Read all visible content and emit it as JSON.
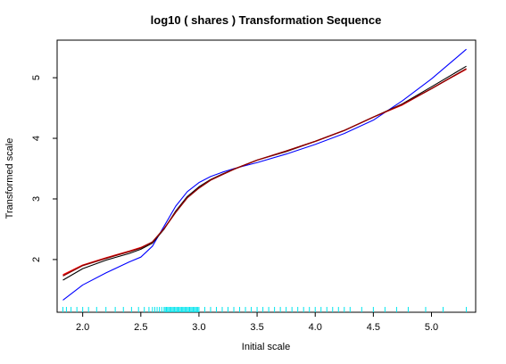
{
  "chart_data": {
    "type": "line",
    "title": "log10 ( shares )  Transformation  Sequence",
    "xlabel": "Initial  scale",
    "ylabel": "Transformed  scale",
    "xlim": [
      1.78,
      5.38
    ],
    "ylim": [
      1.13,
      5.62
    ],
    "x_ticks": [
      2.0,
      2.5,
      3.0,
      3.5,
      4.0,
      4.5,
      5.0
    ],
    "x_tick_labels": [
      "2.0",
      "2.5",
      "3.0",
      "3.5",
      "4.0",
      "4.5",
      "5.0"
    ],
    "y_ticks": [
      2,
      3,
      4,
      5
    ],
    "y_tick_labels": [
      "2",
      "3",
      "4",
      "5"
    ],
    "grid": false,
    "series": [
      {
        "color": "#0000ff",
        "x": [
          1.83,
          2.0,
          2.2,
          2.4,
          2.5,
          2.6,
          2.7,
          2.8,
          2.9,
          3.0,
          3.1,
          3.2,
          3.3,
          3.5,
          3.75,
          4.0,
          4.25,
          4.5,
          4.75,
          5.0,
          5.3
        ],
        "y": [
          1.33,
          1.58,
          1.78,
          1.96,
          2.04,
          2.22,
          2.55,
          2.88,
          3.12,
          3.27,
          3.37,
          3.44,
          3.5,
          3.6,
          3.74,
          3.9,
          4.08,
          4.3,
          4.62,
          4.98,
          5.47
        ]
      },
      {
        "color": "#000000",
        "x": [
          1.83,
          2.0,
          2.2,
          2.4,
          2.5,
          2.6,
          2.7,
          2.8,
          2.9,
          3.0,
          3.1,
          3.2,
          3.3,
          3.5,
          3.75,
          4.0,
          4.25,
          4.5,
          4.75,
          5.0,
          5.3
        ],
        "y": [
          1.66,
          1.85,
          1.99,
          2.1,
          2.17,
          2.27,
          2.5,
          2.8,
          3.04,
          3.2,
          3.32,
          3.41,
          3.49,
          3.64,
          3.78,
          3.95,
          4.13,
          4.35,
          4.57,
          4.85,
          5.19
        ]
      },
      {
        "color": "#ff0000",
        "x": [
          1.83,
          2.0,
          2.2,
          2.4,
          2.5,
          2.6,
          2.7,
          2.8,
          2.9,
          3.0,
          3.1,
          3.2,
          3.3,
          3.5,
          3.75,
          4.0,
          4.25,
          4.5,
          4.75,
          5.0,
          5.3
        ],
        "y": [
          1.75,
          1.91,
          2.03,
          2.14,
          2.2,
          2.29,
          2.51,
          2.78,
          3.02,
          3.18,
          3.31,
          3.4,
          3.49,
          3.64,
          3.79,
          3.95,
          4.13,
          4.35,
          4.55,
          4.82,
          5.14
        ]
      },
      {
        "color": "#8b0000",
        "x": [
          1.83,
          2.0,
          2.2,
          2.4,
          2.5,
          2.6,
          2.7,
          2.8,
          2.9,
          3.0,
          3.1,
          3.2,
          3.3,
          3.5,
          3.75,
          4.0,
          4.25,
          4.5,
          4.75,
          5.0,
          5.3
        ],
        "y": [
          1.73,
          1.9,
          2.02,
          2.13,
          2.19,
          2.29,
          2.51,
          2.78,
          3.02,
          3.18,
          3.31,
          3.4,
          3.49,
          3.64,
          3.79,
          3.95,
          4.13,
          4.35,
          4.56,
          4.82,
          5.15
        ]
      }
    ],
    "rug": {
      "color": "#00e5ee",
      "x": [
        1.83,
        1.86,
        1.9,
        1.95,
        2.0,
        2.05,
        2.12,
        2.2,
        2.28,
        2.35,
        2.42,
        2.48,
        2.53,
        2.57,
        2.6,
        2.62,
        2.64,
        2.66,
        2.68,
        2.7,
        2.71,
        2.72,
        2.73,
        2.74,
        2.75,
        2.76,
        2.77,
        2.78,
        2.79,
        2.8,
        2.81,
        2.82,
        2.83,
        2.84,
        2.85,
        2.86,
        2.87,
        2.88,
        2.89,
        2.9,
        2.91,
        2.92,
        2.93,
        2.94,
        2.95,
        2.96,
        2.97,
        2.98,
        2.99,
        3.0,
        3.05,
        3.1,
        3.15,
        3.2,
        3.25,
        3.3,
        3.35,
        3.4,
        3.45,
        3.5,
        3.55,
        3.6,
        3.65,
        3.7,
        3.75,
        3.8,
        3.85,
        3.9,
        3.95,
        4.0,
        4.05,
        4.1,
        4.15,
        4.2,
        4.25,
        4.3,
        4.4,
        4.5,
        4.6,
        4.7,
        4.8,
        4.95,
        5.1,
        5.3
      ]
    }
  }
}
